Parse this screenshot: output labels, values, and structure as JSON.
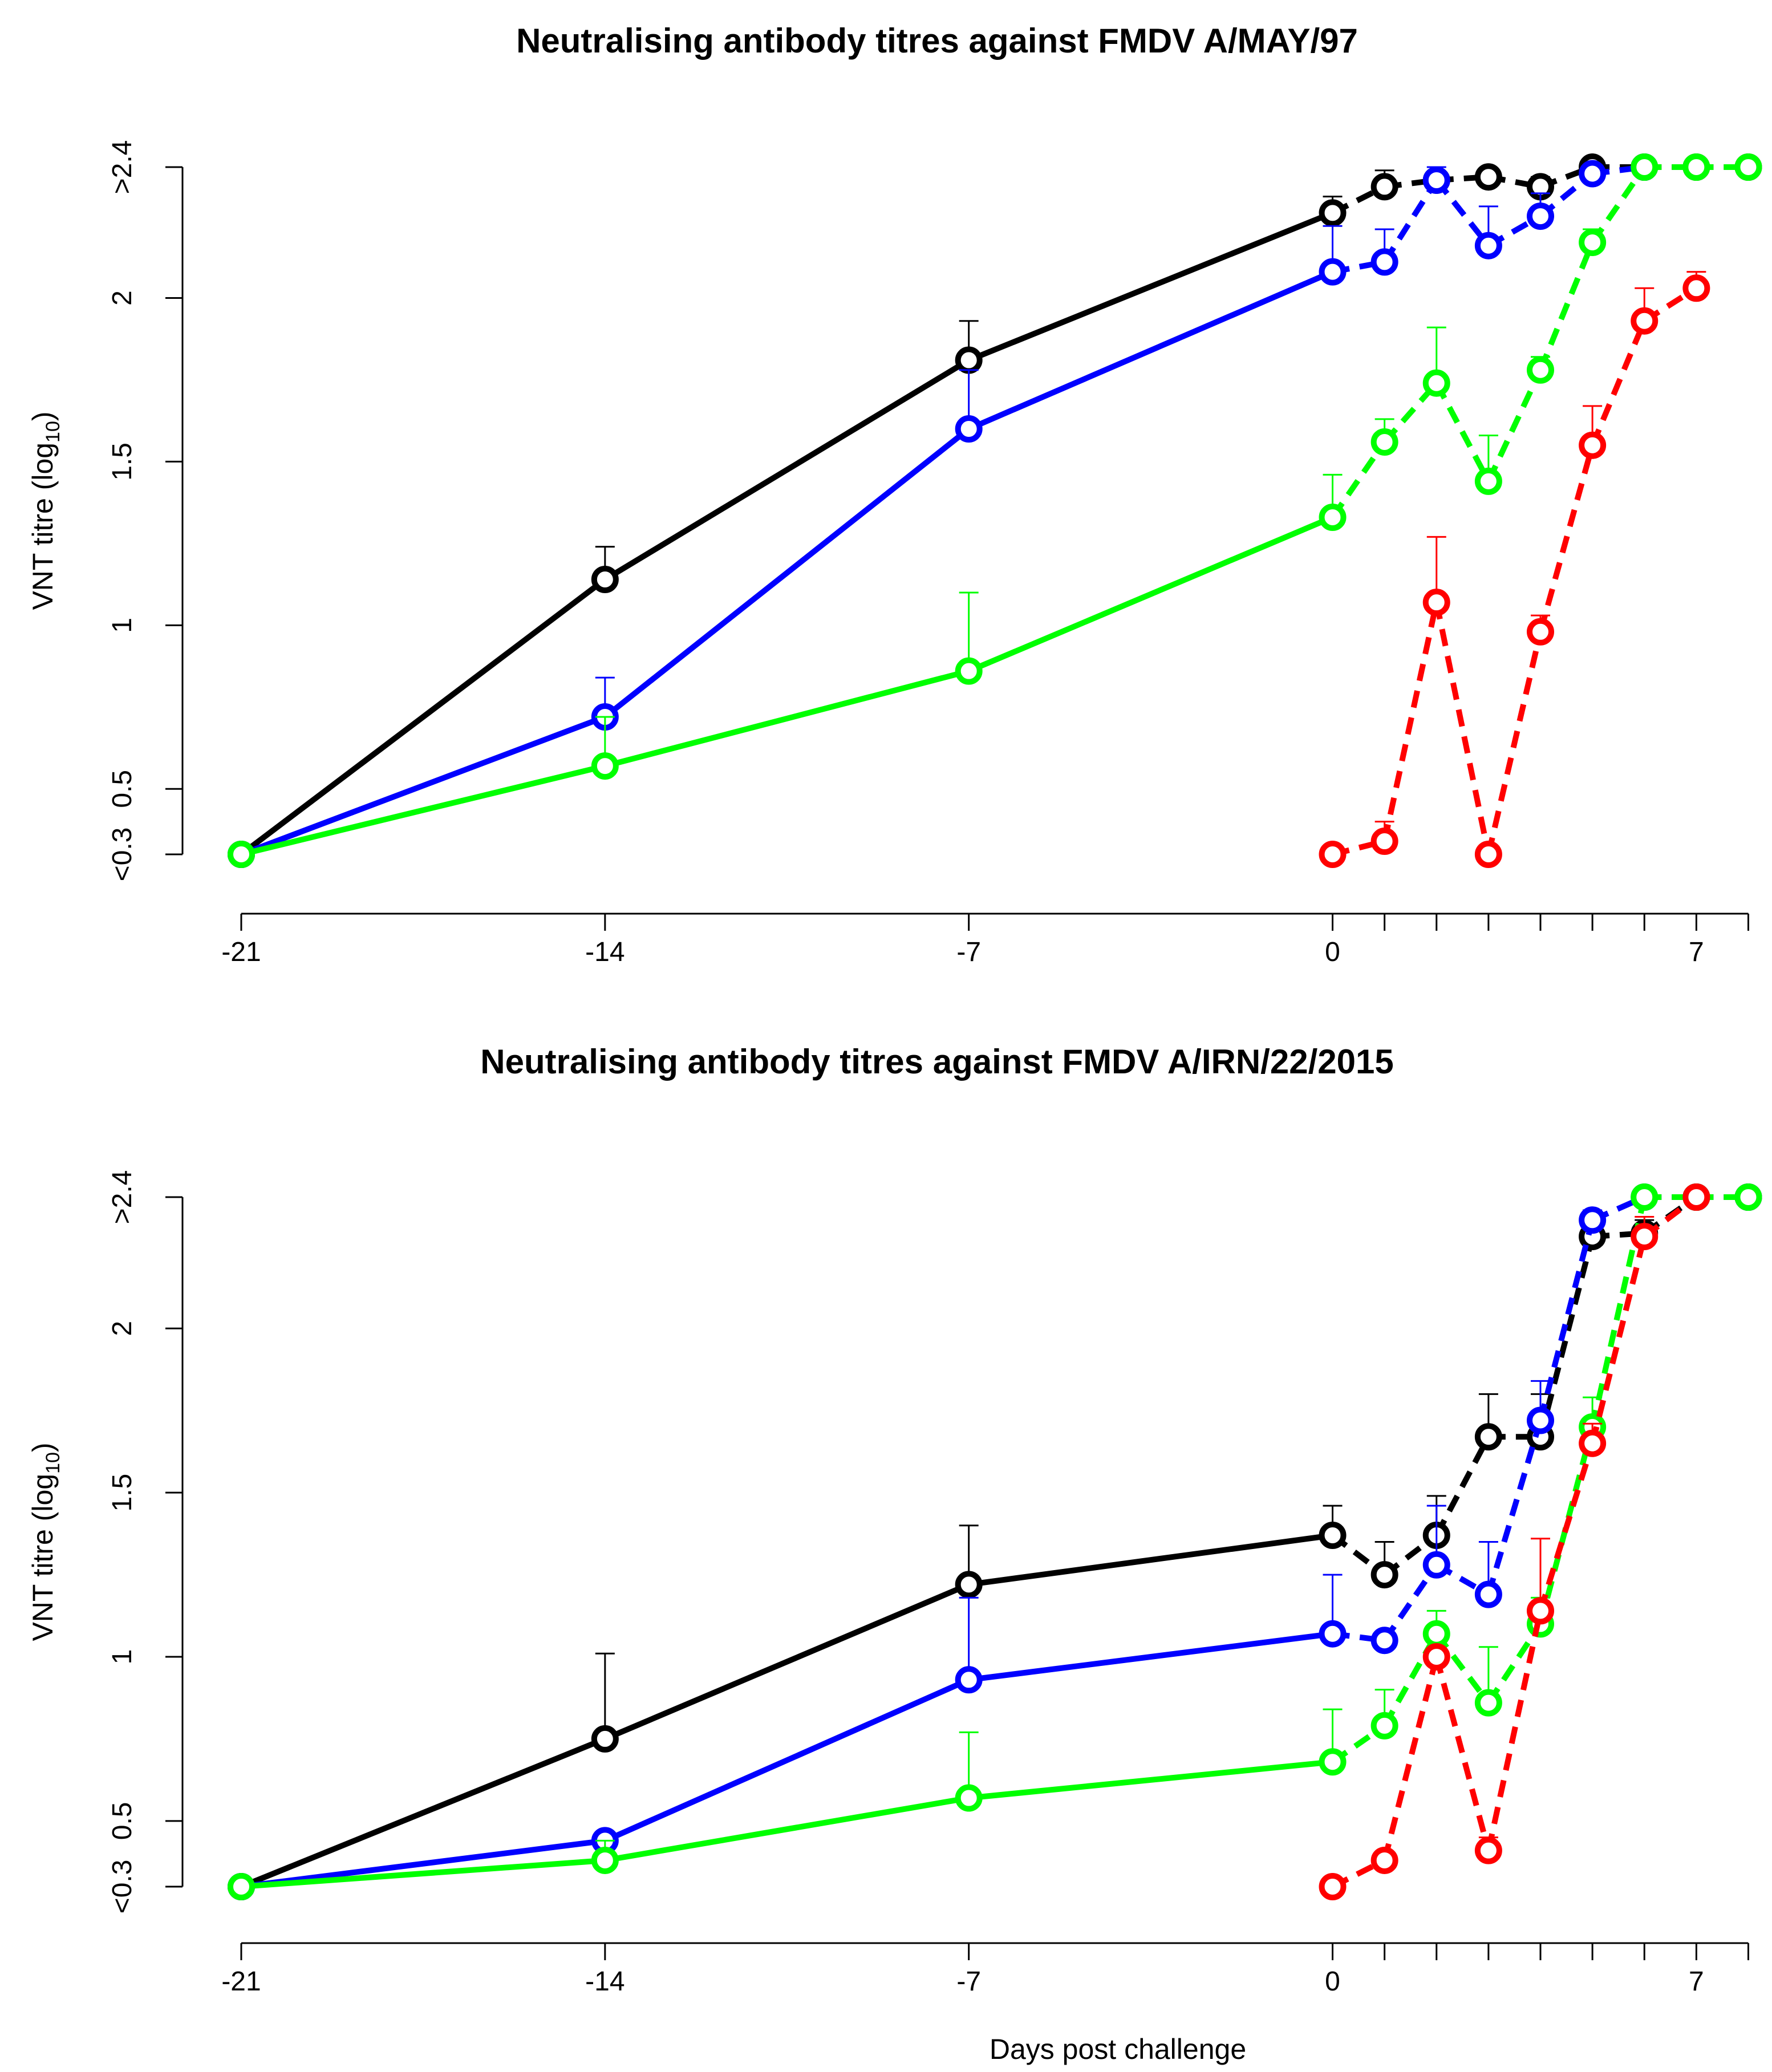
{
  "xlabel": "Days post challenge",
  "ylabel_main": "VNT titre (log",
  "ylabel_sub": "10",
  "ylabel_close": ")",
  "colors": {
    "black": "#000000",
    "blue": "#0000ff",
    "green": "#00ff00",
    "red": "#ff0000"
  },
  "chart_data": [
    {
      "type": "line",
      "title": "Neutralising antibody titres against FMDV A/MAY/97",
      "xlabel": "",
      "ylabel": "VNT titre (log10)",
      "xlim": [
        -21,
        7
      ],
      "ylim": [
        0.3,
        2.4
      ],
      "xticks": [
        -21,
        -14,
        -7,
        0,
        7
      ],
      "xtick_labels": [
        "-21",
        "-14",
        "-7",
        "0",
        "7"
      ],
      "yticks": [
        0.3,
        0.5,
        1,
        1.5,
        2,
        2.4
      ],
      "ytick_labels": [
        "<0.3",
        "0.5",
        "1",
        "1.5",
        "2",
        ">2.4"
      ],
      "series": [
        {
          "name": "black",
          "color": "#000000",
          "x": [
            -21,
            -14,
            -7,
            0,
            1,
            2,
            3,
            4,
            5,
            6,
            7,
            8
          ],
          "y": [
            0.3,
            1.14,
            1.81,
            2.26,
            2.34,
            2.36,
            2.37,
            2.34,
            2.48,
            2.51,
            2.51,
            2.51
          ],
          "err": [
            0,
            0.1,
            0.12,
            0.05,
            0.05,
            0.02,
            0,
            0.03,
            0.05,
            0,
            0,
            0
          ]
        },
        {
          "name": "blue",
          "color": "#0000ff",
          "x": [
            -21,
            -14,
            -7,
            0,
            1,
            2,
            3,
            4,
            5,
            6
          ],
          "y": [
            0.3,
            0.72,
            1.6,
            2.08,
            2.11,
            2.36,
            2.16,
            2.25,
            2.38,
            2.51
          ],
          "err": [
            0,
            0.12,
            0.18,
            0.14,
            0.1,
            0.06,
            0.12,
            0.07,
            0.05,
            0
          ]
        },
        {
          "name": "green",
          "color": "#00ff00",
          "x": [
            -21,
            -14,
            -7,
            0,
            1,
            2,
            3,
            4,
            5,
            6,
            7,
            8
          ],
          "y": [
            0.3,
            0.57,
            0.86,
            1.33,
            1.56,
            1.74,
            1.44,
            1.78,
            2.17,
            2.51,
            2.44,
            2.51
          ],
          "err": [
            0,
            0.15,
            0.24,
            0.13,
            0.07,
            0.17,
            0.14,
            0.04,
            0.04,
            0,
            0.07,
            0
          ]
        },
        {
          "name": "red",
          "color": "#ff0000",
          "x": [
            0,
            1,
            2,
            3,
            4,
            5,
            6,
            7
          ],
          "y": [
            0.3,
            0.34,
            1.07,
            0.3,
            0.98,
            1.55,
            1.93,
            2.03
          ],
          "err": [
            0,
            0.06,
            0.2,
            0,
            0.05,
            0.12,
            0.1,
            0.05
          ]
        }
      ]
    },
    {
      "type": "line",
      "title": "Neutralising antibody titres against FMDV A/IRN/22/2015",
      "xlabel": "Days post challenge",
      "ylabel": "VNT titre (log10)",
      "xlim": [
        -21,
        7
      ],
      "ylim": [
        0.3,
        2.4
      ],
      "xticks": [
        -21,
        -14,
        -7,
        0,
        7
      ],
      "xtick_labels": [
        "-21",
        "-14",
        "-7",
        "0",
        "7"
      ],
      "yticks": [
        0.3,
        0.5,
        1,
        1.5,
        2,
        2.4
      ],
      "ytick_labels": [
        "<0.3",
        "0.5",
        "1",
        "1.5",
        "2",
        ">2.4"
      ],
      "series": [
        {
          "name": "black",
          "color": "#000000",
          "x": [
            -21,
            -14,
            -7,
            0,
            1,
            2,
            3,
            4,
            5,
            6,
            7,
            8
          ],
          "y": [
            0.3,
            0.75,
            1.22,
            1.37,
            1.25,
            1.37,
            1.67,
            1.67,
            2.28,
            2.29,
            2.42,
            2.5
          ],
          "err": [
            0,
            0.26,
            0.18,
            0.09,
            0.1,
            0.12,
            0.13,
            0.13,
            0.03,
            0.04,
            0.02,
            0
          ]
        },
        {
          "name": "blue",
          "color": "#0000ff",
          "x": [
            -21,
            -14,
            -7,
            0,
            1,
            2,
            3,
            4,
            5,
            6,
            7,
            8
          ],
          "y": [
            0.3,
            0.44,
            0.93,
            1.07,
            1.05,
            1.28,
            1.19,
            1.72,
            2.33,
            2.47,
            2.5,
            2.5
          ],
          "err": [
            0,
            0.0,
            0.25,
            0.18,
            0.0,
            0.18,
            0.16,
            0.12,
            0.03,
            0.02,
            0,
            0
          ]
        },
        {
          "name": "green",
          "color": "#00ff00",
          "x": [
            -21,
            -14,
            -7,
            0,
            1,
            2,
            3,
            4,
            5,
            6,
            7,
            8
          ],
          "y": [
            0.3,
            0.38,
            0.57,
            0.68,
            0.79,
            1.07,
            0.86,
            1.1,
            1.7,
            2.4,
            2.5,
            2.5
          ],
          "err": [
            0,
            0.06,
            0.2,
            0.16,
            0.11,
            0.07,
            0.17,
            0.08,
            0.09,
            0.12,
            0,
            0
          ]
        },
        {
          "name": "red",
          "color": "#ff0000",
          "x": [
            0,
            1,
            2,
            3,
            4,
            5,
            6,
            7
          ],
          "y": [
            0.3,
            0.38,
            1.0,
            0.41,
            1.14,
            1.65,
            2.28,
            2.46
          ],
          "err": [
            0,
            0,
            0,
            0.04,
            0.22,
            0.06,
            0.06,
            0.04
          ]
        }
      ]
    }
  ]
}
